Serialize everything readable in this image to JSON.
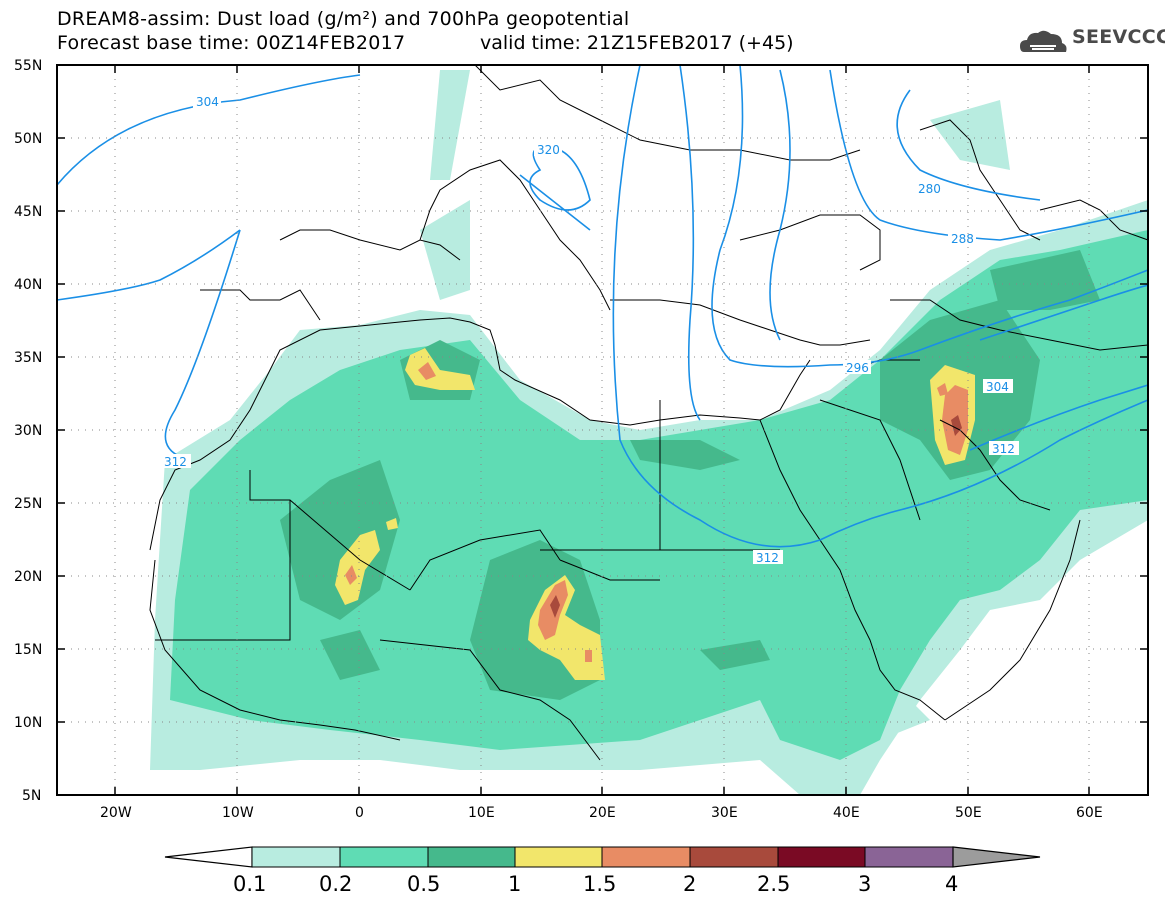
{
  "header": {
    "title_line1": "DREAM8-assim: Dust load (g/m²) and 700hPa geopotential",
    "title_line2a": "Forecast base time: 00Z14FEB2017",
    "title_line2b": "valid time: 21Z15FEB2017 (+45)",
    "logo_text": "SEEVCCC"
  },
  "map": {
    "region": "North Africa, Europe and Middle East",
    "lat_labels": [
      "55N",
      "50N",
      "45N",
      "40N",
      "35N",
      "30N",
      "25N",
      "20N",
      "15N",
      "10N",
      "5N"
    ],
    "lon_labels": [
      "20W",
      "10W",
      "0",
      "10E",
      "20E",
      "30E",
      "40E",
      "50E",
      "60E"
    ],
    "contour_labels": [
      "304",
      "320",
      "280",
      "288",
      "296",
      "304",
      "312",
      "312",
      "312"
    ],
    "contour_color": "#1a8fe6",
    "land_outline_color": "#000000"
  },
  "colorbar": {
    "labels": [
      "0.1",
      "0.2",
      "0.5",
      "1",
      "1.5",
      "2",
      "2.5",
      "3",
      "4"
    ],
    "colors": [
      "#b8ece0",
      "#5fdcb4",
      "#45b98c",
      "#f2e66b",
      "#e88c64",
      "#a84a3c",
      "#7a0a24",
      "#8a6496",
      "#9c9c9c"
    ]
  }
}
